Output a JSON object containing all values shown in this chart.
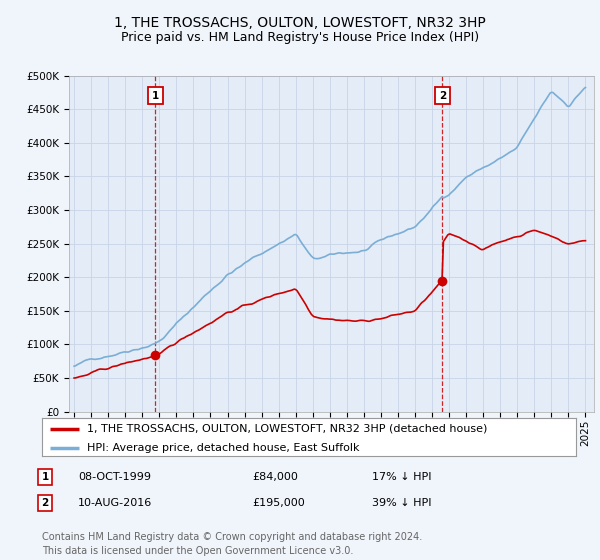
{
  "title": "1, THE TROSSACHS, OULTON, LOWESTOFT, NR32 3HP",
  "subtitle": "Price paid vs. HM Land Registry's House Price Index (HPI)",
  "background_color": "#f0f4fb",
  "plot_bg_color": "#e4ecf7",
  "grid_color": "#c8d4e8",
  "legend_label_red": "1, THE TROSSACHS, OULTON, LOWESTOFT, NR32 3HP (detached house)",
  "legend_label_blue": "HPI: Average price, detached house, East Suffolk",
  "sale1_label": "1",
  "sale1_date": "08-OCT-1999",
  "sale1_price": "£84,000",
  "sale1_hpi": "17% ↓ HPI",
  "sale1_year": 1999.77,
  "sale1_value": 84000,
  "sale2_label": "2",
  "sale2_date": "10-AUG-2016",
  "sale2_price": "£195,000",
  "sale2_hpi": "39% ↓ HPI",
  "sale2_year": 2016.61,
  "sale2_value": 195000,
  "footer": "Contains HM Land Registry data © Crown copyright and database right 2024.\nThis data is licensed under the Open Government Licence v3.0.",
  "ylim": [
    0,
    500000
  ],
  "xlim": [
    1994.7,
    2025.5
  ],
  "red_color": "#cc0000",
  "blue_color": "#7aaed6",
  "line_width": 1.2,
  "title_fontsize": 10,
  "subtitle_fontsize": 9,
  "tick_fontsize": 7.5,
  "legend_fontsize": 8,
  "footer_fontsize": 7
}
